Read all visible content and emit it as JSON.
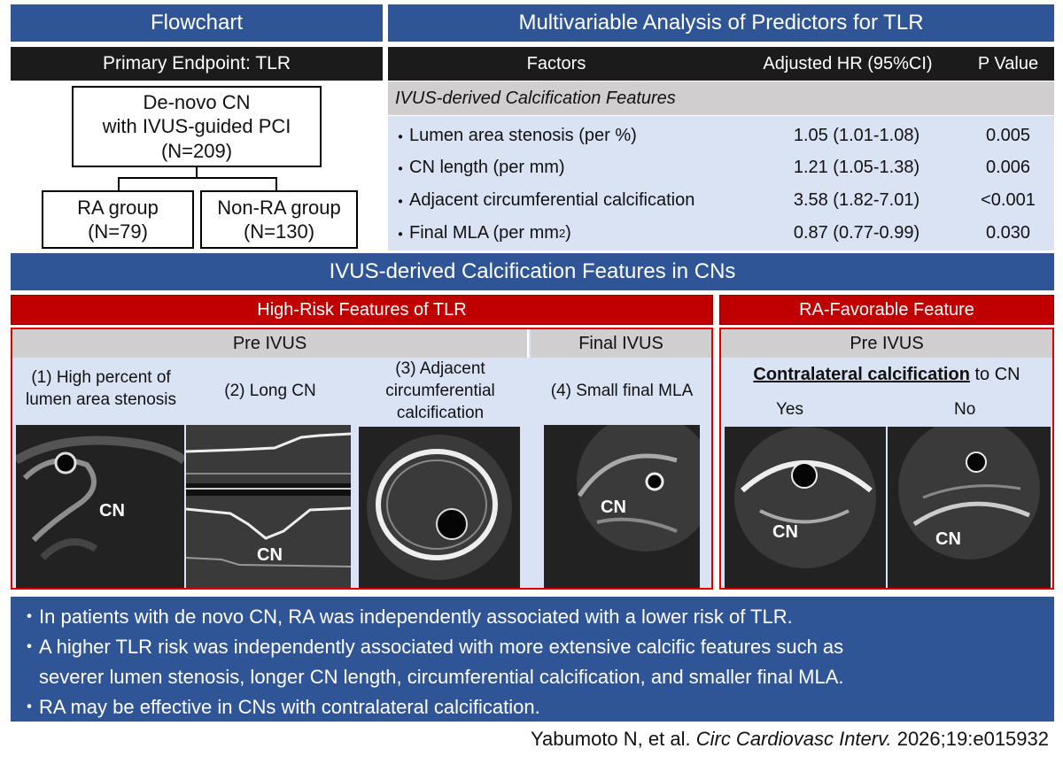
{
  "headers": {
    "flowchart": "Flowchart",
    "analysis": "Multivariable Analysis of Predictors for TLR",
    "features": "IVUS-derived Calcification Features in CNs"
  },
  "flowchart": {
    "primary_endpoint": "Primary Endpoint: TLR",
    "top_box": [
      "De-novo CN",
      "with IVUS-guided PCI",
      "(N=209)"
    ],
    "left_box": [
      "RA group",
      "(N=79)"
    ],
    "right_box": [
      "Non-RA group",
      "(N=130)"
    ]
  },
  "table": {
    "columns": [
      "Factors",
      "Adjusted HR (95%CI)",
      "P Value"
    ],
    "section": "IVUS-derived Calcification Features",
    "bullet": "・",
    "rows": [
      {
        "factor": "Lumen area stenosis (per %)",
        "hr": "1.05 (1.01-1.08)",
        "p": "0.005"
      },
      {
        "factor": "CN length (per mm)",
        "hr": "1.21 (1.05-1.38)",
        "p": "0.006"
      },
      {
        "factor": "Adjacent circumferential calcification",
        "hr": "3.58 (1.82-7.01)",
        "p": "<0.001"
      },
      {
        "factor_main": "Final MLA (per mm",
        "factor_sup": "2",
        "factor_end": ")",
        "hr": "0.87 (0.77-0.99)",
        "p": "0.030"
      }
    ]
  },
  "high_risk": {
    "title": "High-Risk Features of TLR",
    "pre_ivus": "Pre IVUS",
    "final_ivus": "Final IVUS",
    "items": [
      [
        "(1) High percent of",
        "lumen area stenosis"
      ],
      [
        "(2) Long CN"
      ],
      [
        "(3) Adjacent",
        "circumferential",
        "calcification"
      ],
      [
        "(4) Small final MLA"
      ]
    ],
    "image_label": "CN"
  },
  "ra_favorable": {
    "title": "RA-Favorable Feature",
    "pre_ivus": "Pre IVUS",
    "contralateral": "Contralateral calcification",
    "to_cn": " to CN",
    "yes": "Yes",
    "no": "No",
    "image_label": "CN"
  },
  "summary": {
    "bullet": "・",
    "lines": [
      "In patients with de novo CN, RA was independently associated with a lower risk of TLR.",
      "A higher TLR risk was independently associated with more extensive calcific features such as",
      "severer lumen stenosis, longer CN length, circumferential calcification, and smaller final MLA.",
      "RA may be effective in CNs with contralateral calcification."
    ]
  },
  "citation": {
    "authors": "Yabumoto N, et al. ",
    "journal": "Circ Cardiovasc Interv.",
    "ref": " 2026;19:e015932"
  },
  "colors": {
    "header_blue": "#2f5597",
    "header_black": "#1b1b1b",
    "header_red": "#c00000",
    "panel_light_blue": "#dae3f3",
    "panel_gray": "#d0cece"
  }
}
